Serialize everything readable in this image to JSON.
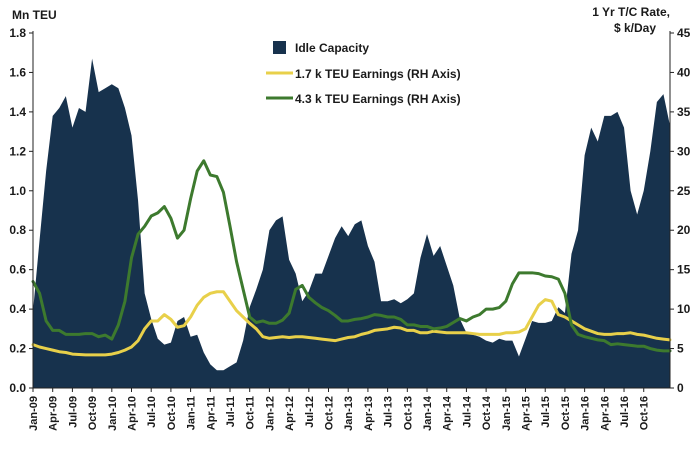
{
  "chart_data": {
    "type": "area",
    "title": "",
    "y_left_label": "Mn TEU",
    "y_right_label_line1": "1 Yr T/C Rate,",
    "y_right_label_line2": "$ k/Day",
    "y_left_range": [
      0,
      1.8
    ],
    "y_right_range": [
      0,
      45
    ],
    "y_left_ticks": [
      "0.0",
      "0.2",
      "0.4",
      "0.6",
      "0.8",
      "1.0",
      "1.2",
      "1.4",
      "1.6",
      "1.8"
    ],
    "y_right_ticks": [
      "0",
      "5",
      "10",
      "15",
      "20",
      "25",
      "30",
      "35",
      "40",
      "45"
    ],
    "x_tick_labels": [
      "Jan-09",
      "Apr-09",
      "Jul-09",
      "Oct-09",
      "Jan-10",
      "Apr-10",
      "Jul-10",
      "Oct-10",
      "Jan-11",
      "Apr-11",
      "Jul-11",
      "Oct-11",
      "Jan-12",
      "Apr-12",
      "Jul-12",
      "Oct-12",
      "Jan-13",
      "Apr-13",
      "Jul-13",
      "Oct-13",
      "Jan-14",
      "Apr-14",
      "Jul-14",
      "Oct-14",
      "Jan-15",
      "Apr-15",
      "Jul-15",
      "Oct-15",
      "Jan-16",
      "Apr-16",
      "Jul-16",
      "Oct-16"
    ],
    "grid": false,
    "legend_position": "top-center",
    "series": [
      {
        "name": "Idle Capacity",
        "type": "area",
        "axis": "left",
        "color": "#17324d",
        "values": [
          0.39,
          0.75,
          1.1,
          1.38,
          1.42,
          1.48,
          1.32,
          1.42,
          1.4,
          1.67,
          1.5,
          1.52,
          1.54,
          1.52,
          1.42,
          1.28,
          0.95,
          0.48,
          0.35,
          0.25,
          0.22,
          0.23,
          0.34,
          0.36,
          0.26,
          0.27,
          0.18,
          0.12,
          0.09,
          0.09,
          0.11,
          0.13,
          0.24,
          0.41,
          0.5,
          0.6,
          0.8,
          0.85,
          0.87,
          0.65,
          0.58,
          0.44,
          0.49,
          0.58,
          0.58,
          0.67,
          0.76,
          0.82,
          0.77,
          0.83,
          0.85,
          0.72,
          0.64,
          0.44,
          0.44,
          0.45,
          0.43,
          0.45,
          0.48,
          0.66,
          0.78,
          0.67,
          0.72,
          0.62,
          0.52,
          0.35,
          0.28,
          0.27,
          0.26,
          0.24,
          0.23,
          0.25,
          0.24,
          0.24,
          0.16,
          0.25,
          0.34,
          0.33,
          0.33,
          0.34,
          0.41,
          0.38,
          0.68,
          0.8,
          1.18,
          1.32,
          1.25,
          1.38,
          1.38,
          1.4,
          1.32,
          1.0,
          0.88,
          1.0,
          1.2,
          1.45,
          1.49,
          1.33
        ]
      },
      {
        "name": "1.7 k TEU Earnings (RH Axis)",
        "type": "line",
        "axis": "right",
        "color": "#e8d04a",
        "values": [
          5.5,
          5.2,
          5.0,
          4.8,
          4.6,
          4.5,
          4.3,
          4.25,
          4.2,
          4.2,
          4.2,
          4.2,
          4.3,
          4.5,
          4.8,
          5.2,
          6.0,
          7.5,
          8.5,
          8.5,
          9.3,
          8.7,
          7.7,
          7.9,
          9.0,
          10.5,
          11.5,
          12.0,
          12.2,
          12.2,
          11.0,
          9.8,
          9.0,
          8.2,
          7.5,
          6.5,
          6.3,
          6.4,
          6.5,
          6.4,
          6.5,
          6.5,
          6.4,
          6.3,
          6.2,
          6.1,
          6.0,
          6.2,
          6.4,
          6.5,
          6.8,
          7.0,
          7.3,
          7.4,
          7.5,
          7.7,
          7.6,
          7.3,
          7.3,
          7.0,
          7.0,
          7.2,
          7.1,
          7.0,
          7.0,
          7.0,
          7.0,
          6.9,
          6.8,
          6.8,
          6.8,
          6.8,
          7.0,
          7.0,
          7.1,
          7.5,
          9.0,
          10.5,
          11.2,
          11.0,
          9.3,
          9.0,
          8.5,
          8.0,
          7.5,
          7.2,
          6.9,
          6.8,
          6.8,
          6.9,
          6.9,
          7.0,
          6.8,
          6.7,
          6.5,
          6.3,
          6.2,
          6.1
        ]
      },
      {
        "name": "4.3 k TEU Earnings (RH Axis)",
        "type": "line",
        "axis": "right",
        "color": "#3d7a2e",
        "values": [
          13.5,
          12.0,
          8.5,
          7.3,
          7.3,
          6.8,
          6.8,
          6.8,
          6.9,
          6.9,
          6.5,
          6.7,
          6.2,
          8.0,
          11.0,
          16.5,
          19.5,
          20.5,
          21.8,
          22.2,
          23.0,
          21.5,
          19.0,
          20.0,
          24.0,
          27.5,
          28.8,
          27.0,
          26.8,
          24.8,
          20.5,
          16.0,
          12.5,
          9.0,
          8.3,
          8.5,
          8.2,
          8.2,
          8.6,
          9.5,
          12.5,
          13.0,
          11.5,
          10.8,
          10.2,
          9.8,
          9.2,
          8.5,
          8.5,
          8.7,
          8.8,
          9.0,
          9.3,
          9.2,
          9.0,
          9.0,
          8.7,
          8.0,
          8.0,
          7.8,
          7.8,
          7.5,
          7.6,
          7.8,
          8.3,
          8.8,
          8.5,
          9.0,
          9.3,
          10.0,
          10.0,
          10.2,
          11.0,
          13.2,
          14.6,
          14.6,
          14.6,
          14.5,
          14.2,
          14.1,
          13.8,
          12.0,
          8.0,
          6.8,
          6.5,
          6.3,
          6.1,
          6.0,
          5.5,
          5.6,
          5.5,
          5.4,
          5.3,
          5.3,
          5.0,
          4.8,
          4.7,
          4.7
        ]
      }
    ]
  }
}
